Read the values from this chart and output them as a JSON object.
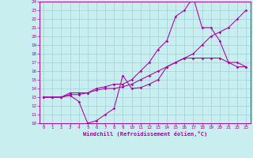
{
  "title": "",
  "xlabel": "Windchill (Refroidissement éolien,°C)",
  "ylabel": "",
  "bg_color": "#c8eef0",
  "line_color": "#aa00aa",
  "grid_color": "#a0d0d8",
  "xlim": [
    -0.5,
    23.5
  ],
  "ylim": [
    10,
    24
  ],
  "xticks": [
    0,
    1,
    2,
    3,
    4,
    5,
    6,
    7,
    8,
    9,
    10,
    11,
    12,
    13,
    14,
    15,
    16,
    17,
    18,
    19,
    20,
    21,
    22,
    23
  ],
  "yticks": [
    10,
    11,
    12,
    13,
    14,
    15,
    16,
    17,
    18,
    19,
    20,
    21,
    22,
    23,
    24
  ],
  "line1_x": [
    0,
    1,
    2,
    3,
    4,
    5,
    6,
    7,
    8,
    9,
    10,
    11,
    12,
    13,
    14,
    15,
    16,
    17,
    18,
    19,
    20,
    21,
    22,
    23
  ],
  "line1_y": [
    13,
    13,
    13,
    13.2,
    12.5,
    10,
    10.3,
    11,
    11.7,
    15.5,
    14,
    14.1,
    14.5,
    15,
    16.5,
    17,
    17.5,
    17.5,
    17.5,
    17.5,
    17.5,
    17.0,
    16.5,
    16.5
  ],
  "line2_x": [
    0,
    1,
    2,
    3,
    4,
    5,
    6,
    7,
    8,
    9,
    10,
    11,
    12,
    13,
    14,
    15,
    16,
    17,
    18,
    19,
    20,
    21,
    22,
    23
  ],
  "line2_y": [
    13,
    13,
    13,
    13.3,
    13.3,
    13.5,
    13.8,
    14.0,
    14.0,
    14.2,
    14.5,
    15.0,
    15.5,
    16.0,
    16.5,
    17.0,
    17.5,
    18.0,
    19.0,
    20.0,
    20.5,
    21.0,
    22.0,
    23.0
  ],
  "line3_x": [
    0,
    1,
    2,
    3,
    4,
    5,
    6,
    7,
    8,
    9,
    10,
    11,
    12,
    13,
    14,
    15,
    16,
    17,
    18,
    19,
    20,
    21,
    22,
    23
  ],
  "line3_y": [
    13,
    13,
    13,
    13.5,
    13.5,
    13.5,
    14,
    14.2,
    14.5,
    14.5,
    15,
    16,
    17,
    18.5,
    19.5,
    22.3,
    23.0,
    24.5,
    21.0,
    21.0,
    19.5,
    17.0,
    17.0,
    16.5
  ]
}
